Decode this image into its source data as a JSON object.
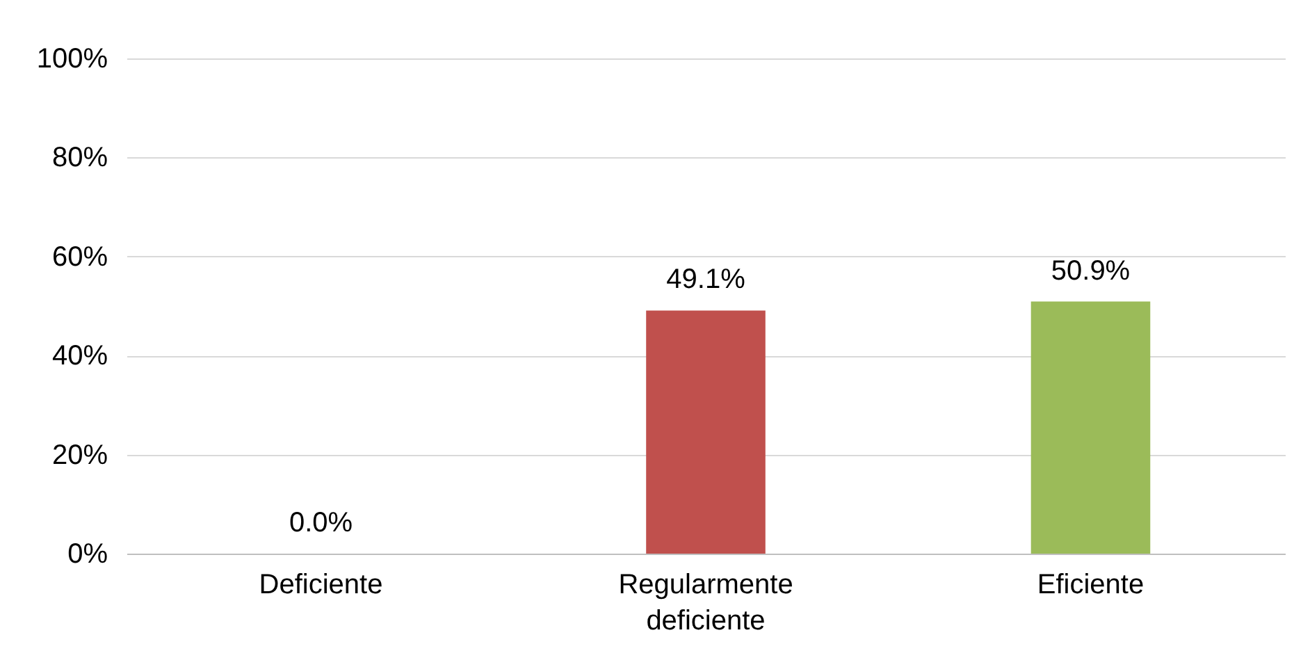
{
  "chart_data": {
    "type": "bar",
    "categories": [
      "Deficiente",
      "Regularmente deficiente",
      "Eficiente"
    ],
    "values": [
      0.0,
      49.1,
      50.9
    ],
    "colors": [
      "#4f81bd",
      "#c0504d",
      "#9bbb59"
    ],
    "value_labels": [
      "0.0%",
      "49.1%",
      "50.9%"
    ],
    "ylim": [
      0,
      100
    ],
    "yticks": [
      {
        "value": 0,
        "label": "0%"
      },
      {
        "value": 20,
        "label": "20%"
      },
      {
        "value": 40,
        "label": "40%"
      },
      {
        "value": 60,
        "label": "60%"
      },
      {
        "value": 80,
        "label": "80%"
      },
      {
        "value": 100,
        "label": "100%"
      }
    ],
    "grid": "y"
  }
}
